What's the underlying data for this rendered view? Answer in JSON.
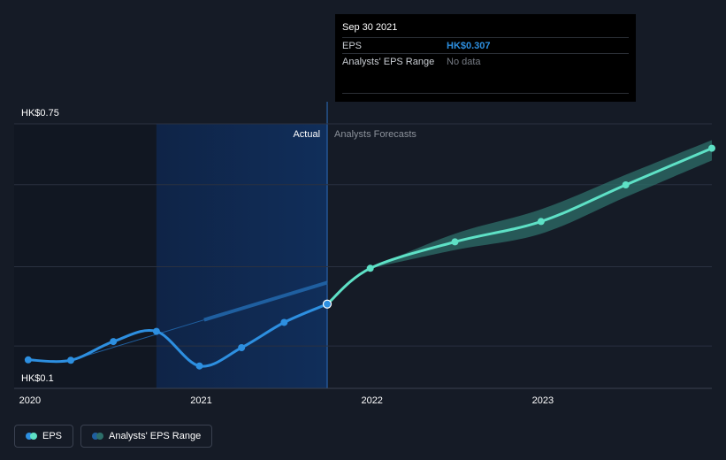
{
  "chart_data": {
    "type": "line",
    "y_axis": {
      "ticks": [
        "HK$0.75",
        "HK$0.1"
      ],
      "ylim": [
        0.1,
        0.75
      ]
    },
    "x_axis": {
      "ticks": [
        "2020",
        "2021",
        "2022",
        "2023"
      ],
      "xlim": [
        "2019-12-01",
        "2023-12-31"
      ]
    },
    "zones": {
      "actual": "Actual",
      "forecast": "Analysts Forecasts"
    },
    "series": [
      {
        "name": "EPS",
        "color": "#2d8fe0",
        "points": [
          {
            "x": "2019-12-31",
            "y": 0.17
          },
          {
            "x": "2020-03-31",
            "y": 0.169
          },
          {
            "x": "2020-06-30",
            "y": 0.215
          },
          {
            "x": "2020-09-30",
            "y": 0.24
          },
          {
            "x": "2020-12-31",
            "y": 0.155
          },
          {
            "x": "2021-03-31",
            "y": 0.2
          },
          {
            "x": "2021-06-30",
            "y": 0.262
          },
          {
            "x": "2021-09-30",
            "y": 0.307
          }
        ]
      },
      {
        "name": "EPS forecast",
        "color": "#5ee1c6",
        "points": [
          {
            "x": "2021-09-30",
            "y": 0.307
          },
          {
            "x": "2021-12-31",
            "y": 0.395
          },
          {
            "x": "2022-06-30",
            "y": 0.46
          },
          {
            "x": "2022-12-31",
            "y": 0.51
          },
          {
            "x": "2023-06-30",
            "y": 0.6
          },
          {
            "x": "2023-12-31",
            "y": 0.69
          }
        ]
      },
      {
        "name": "Analysts' EPS Range",
        "color": "#2d6f6a",
        "upper": [
          {
            "x": "2021-12-31",
            "y": 0.395
          },
          {
            "x": "2022-06-30",
            "y": 0.48
          },
          {
            "x": "2022-12-31",
            "y": 0.54
          },
          {
            "x": "2023-06-30",
            "y": 0.625
          },
          {
            "x": "2023-12-31",
            "y": 0.71
          }
        ],
        "lower": [
          {
            "x": "2021-12-31",
            "y": 0.395
          },
          {
            "x": "2022-06-30",
            "y": 0.44
          },
          {
            "x": "2022-12-31",
            "y": 0.48
          },
          {
            "x": "2023-06-30",
            "y": 0.57
          },
          {
            "x": "2023-12-31",
            "y": 0.66
          }
        ]
      }
    ],
    "trend_line": {
      "color": "#1f5fa0",
      "points": [
        {
          "x": "2020-03-31",
          "y": 0.169
        },
        {
          "x": "2021-09-30",
          "y": 0.36
        }
      ]
    },
    "grid": true
  },
  "tooltip": {
    "date": "Sep 30 2021",
    "rows": [
      {
        "label": "EPS",
        "value": "HK$0.307"
      },
      {
        "label": "Analysts' EPS Range",
        "value": "No data"
      }
    ]
  },
  "legend": [
    {
      "label": "EPS",
      "colors": [
        "#2d8fe0",
        "#5ee1c6"
      ]
    },
    {
      "label": "Analysts' EPS Range",
      "colors": [
        "#1f5fa0",
        "#2d6f6a"
      ]
    }
  ]
}
